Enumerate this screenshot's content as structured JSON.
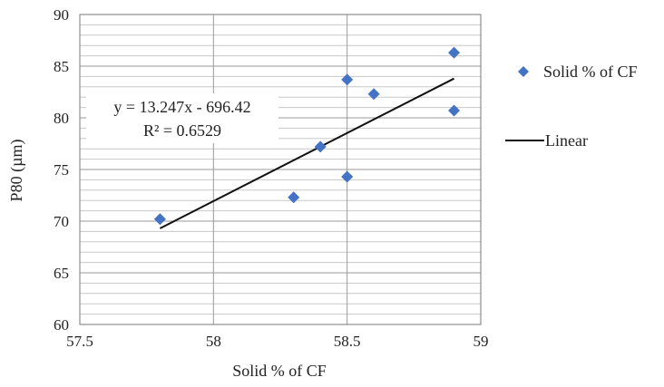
{
  "chart_data": {
    "type": "scatter",
    "xlabel": "Solid % of CF",
    "ylabel": "P80 (µm)",
    "xlim": [
      57.5,
      59
    ],
    "ylim": [
      60,
      90
    ],
    "x_ticks": [
      "57.5",
      "58",
      "58.5",
      "59"
    ],
    "y_ticks": [
      "60",
      "65",
      "70",
      "75",
      "80",
      "85",
      "90"
    ],
    "grid": true,
    "legend_position": "right",
    "series": [
      {
        "name": "Solid % of CF",
        "kind": "scatter",
        "marker": "diamond",
        "color": "#4472C4",
        "x": [
          57.8,
          58.3,
          58.4,
          58.5,
          58.5,
          58.6,
          58.9,
          58.9
        ],
        "y": [
          70.2,
          72.3,
          77.2,
          83.7,
          74.3,
          82.3,
          86.3,
          80.7
        ]
      },
      {
        "name": "Linear",
        "kind": "line",
        "color": "#111111",
        "x": [
          57.8,
          58.9
        ],
        "y": [
          69.3,
          83.8
        ]
      }
    ],
    "annotations": {
      "equation": "y = 13.247x - 696.42",
      "r_squared": "R² = 0.6529"
    }
  }
}
